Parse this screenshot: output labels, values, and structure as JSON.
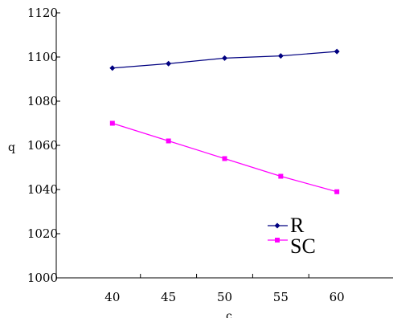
{
  "chart_data": {
    "type": "line",
    "title": "",
    "xlabel": "c",
    "ylabel": "q",
    "x": [
      40,
      45,
      50,
      55,
      60
    ],
    "xlim": [
      35,
      65
    ],
    "ylim": [
      1000,
      1120
    ],
    "yticks": [
      1000,
      1020,
      1040,
      1060,
      1080,
      1100,
      1120
    ],
    "xticks": [
      40,
      45,
      50,
      55,
      60
    ],
    "grid": false,
    "legend_position": "bottom-right",
    "series": [
      {
        "name": "R",
        "values": [
          1095,
          1097,
          1099.5,
          1100.5,
          1102.5
        ],
        "color": "#000080",
        "marker": "diamond"
      },
      {
        "name": "SC",
        "values": [
          1070,
          1062,
          1054,
          1046,
          1039
        ],
        "color": "#ff00ff",
        "marker": "square"
      }
    ]
  }
}
